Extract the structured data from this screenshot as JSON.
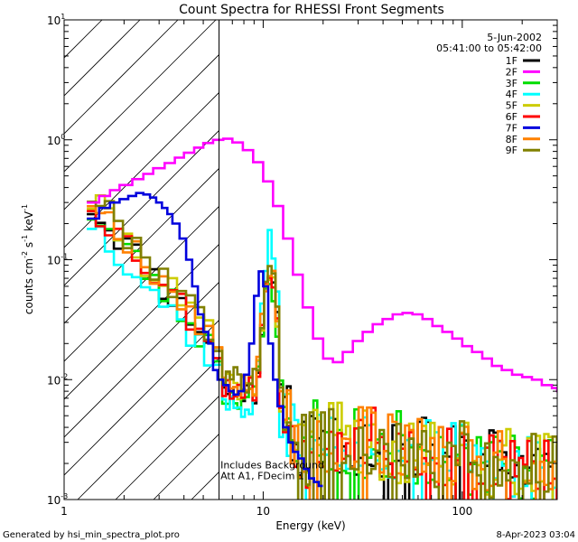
{
  "chart_data": {
    "type": "line",
    "title": "Count Spectra for RHESSI Front Segments",
    "xlabel": "Energy (keV)",
    "ylabel": {
      "base": "counts cm",
      "exp1": "-2",
      "mid": " s",
      "exp2": "-1",
      "end": " keV",
      "exp3": "-1"
    },
    "x_scale": "log",
    "y_scale": "log",
    "xlim": [
      1,
      300
    ],
    "ylim": [
      0.001,
      10
    ],
    "x_ticks": [
      {
        "value": 1,
        "label": "1"
      },
      {
        "value": 10,
        "label": "10"
      },
      {
        "value": 100,
        "label": "100"
      }
    ],
    "y_ticks": [
      {
        "value": 0.001,
        "base": "10",
        "exp": "-3"
      },
      {
        "value": 0.01,
        "base": "10",
        "exp": "-2"
      },
      {
        "value": 0.1,
        "base": "10",
        "exp": "-1"
      },
      {
        "value": 1,
        "base": "10",
        "exp": "0"
      },
      {
        "value": 10,
        "base": "10",
        "exp": "1"
      }
    ],
    "hatched_region_keV": [
      1,
      6
    ],
    "date": "5-Jun-2002",
    "time_range": "05:41:00 to 05:42:00",
    "annotation": [
      "Includes Background",
      "Att A1, FDecim 1"
    ],
    "annotation_at": {
      "x": 6.1,
      "y": 0.0017
    },
    "series": [
      {
        "name": "1F",
        "color": "#000000",
        "seed": 11,
        "low_shift": 1.0,
        "peak_scale": 0.9
      },
      {
        "name": "2F",
        "color": "#ff00ff",
        "x": [
          1.3,
          1.5,
          1.7,
          1.9,
          2.2,
          2.5,
          2.8,
          3.2,
          3.6,
          4.0,
          4.5,
          5.0,
          5.6,
          6.3,
          7.0,
          7.9,
          8.9,
          10,
          11.2,
          12.6,
          14.1,
          15.8,
          17.8,
          20,
          22.4,
          25.1,
          28.2,
          31.6,
          35.5,
          39.8,
          44.7,
          50.1,
          56.2,
          63.1,
          70.8,
          79.4,
          89.1,
          100,
          112,
          126,
          141,
          158,
          178,
          200,
          224,
          251,
          282,
          300
        ],
        "values": [
          0.3,
          0.34,
          0.38,
          0.42,
          0.47,
          0.52,
          0.58,
          0.64,
          0.71,
          0.78,
          0.86,
          0.94,
          1.0,
          1.02,
          0.95,
          0.82,
          0.65,
          0.45,
          0.28,
          0.15,
          0.075,
          0.04,
          0.022,
          0.015,
          0.014,
          0.017,
          0.021,
          0.025,
          0.029,
          0.032,
          0.035,
          0.036,
          0.035,
          0.032,
          0.028,
          0.025,
          0.022,
          0.019,
          0.017,
          0.015,
          0.013,
          0.012,
          0.011,
          0.0105,
          0.01,
          0.009,
          0.0085,
          0.008
        ]
      },
      {
        "name": "3F",
        "color": "#00dd00",
        "seed": 23,
        "low_shift": 0.9,
        "peak_scale": 0.7
      },
      {
        "name": "4F",
        "color": "#00ffff",
        "seed": 37,
        "low_shift": 0.75,
        "peak_scale": 1.45
      },
      {
        "name": "5F",
        "color": "#cccc00",
        "seed": 41,
        "low_shift": 1.1,
        "peak_scale": 0.85
      },
      {
        "name": "6F",
        "color": "#ff0000",
        "seed": 53,
        "low_shift": 1.05,
        "peak_scale": 0.8
      },
      {
        "name": "7F",
        "color": "#0000dd",
        "x": [
          1.3,
          1.5,
          1.7,
          1.9,
          2.1,
          2.3,
          2.5,
          2.7,
          2.9,
          3.1,
          3.3,
          3.5,
          3.8,
          4.1,
          4.4,
          4.7,
          5.0,
          5.3,
          5.6,
          5.9,
          6.3,
          6.7,
          7.1,
          7.5,
          8.0,
          8.5,
          9.0,
          9.5,
          10,
          10.6,
          11.2,
          11.8,
          12.6,
          13.4,
          14.1,
          15,
          16,
          17,
          18,
          19
        ],
        "values": [
          0.22,
          0.27,
          0.3,
          0.32,
          0.34,
          0.36,
          0.35,
          0.33,
          0.3,
          0.27,
          0.24,
          0.2,
          0.15,
          0.1,
          0.06,
          0.035,
          0.025,
          0.02,
          0.012,
          0.01,
          0.009,
          0.008,
          0.0075,
          0.008,
          0.011,
          0.02,
          0.05,
          0.08,
          0.06,
          0.02,
          0.01,
          0.006,
          0.004,
          0.003,
          0.0025,
          0.0022,
          0.0018,
          0.0015,
          0.0014,
          0.0013
        ]
      },
      {
        "name": "8F",
        "color": "#ff8000",
        "seed": 67,
        "low_shift": 1.15,
        "peak_scale": 0.95
      },
      {
        "name": "9F",
        "color": "#808000",
        "seed": 79,
        "low_shift": 1.25,
        "peak_scale": 1.05
      }
    ]
  },
  "footer": {
    "left": "Generated by hsi_min_spectra_plot.pro",
    "right": "8-Apr-2023 03:04"
  }
}
